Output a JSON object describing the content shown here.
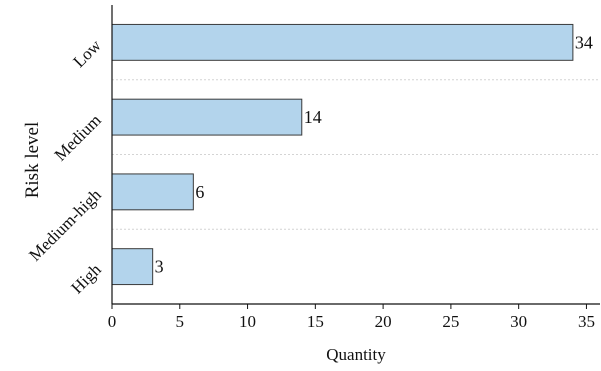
{
  "chart_data": {
    "type": "bar",
    "orientation": "horizontal",
    "categories": [
      "Low",
      "Medium",
      "Medium-high",
      "High"
    ],
    "values": [
      34,
      14,
      6,
      3
    ],
    "data_labels": [
      "34",
      "14",
      "6",
      "3"
    ],
    "title": "",
    "xlabel": "Quantity",
    "ylabel": "Risk level",
    "xlim": [
      0,
      36
    ],
    "xticks": [
      0,
      5,
      10,
      15,
      20,
      25,
      30,
      35
    ],
    "xtick_labels": [
      "0",
      "5",
      "10",
      "15",
      "20",
      "25",
      "30",
      "35"
    ],
    "grid": "horizontal dashed separators between categories",
    "bar_color": "#b3d4ec",
    "bar_edge_color": "#3a3a3a"
  }
}
